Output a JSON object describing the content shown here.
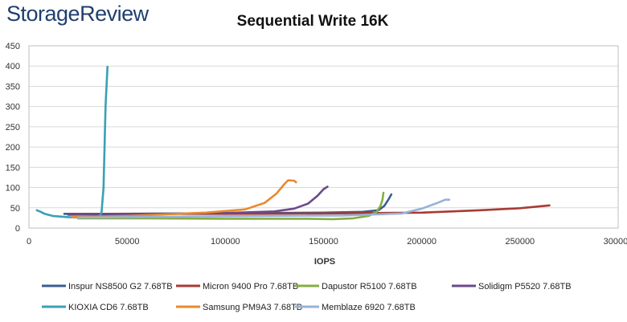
{
  "brand": {
    "part1": "Storage",
    "part2": "Review"
  },
  "chart_data": {
    "type": "line",
    "title": "Sequential Write 16K",
    "xlabel": "IOPS",
    "ylabel": "",
    "xlim": [
      0,
      300000
    ],
    "ylim": [
      0,
      450
    ],
    "xticks": [
      0,
      50000,
      100000,
      150000,
      200000,
      250000,
      300000
    ],
    "xtick_labels": [
      "0",
      "50000",
      "100000",
      "150000",
      "200000",
      "250000",
      "300000"
    ],
    "yticks": [
      0,
      50,
      100,
      150,
      200,
      250,
      300,
      350,
      400,
      450
    ],
    "ytick_labels": [
      "0",
      "50",
      "100",
      "150",
      "200",
      "250",
      "300",
      "350",
      "400",
      "450"
    ],
    "grid": true,
    "legend_position": "bottom",
    "series": [
      {
        "name": "Inspur NS8500 G2 7.68TB",
        "color": "#3a5f8f",
        "points": [
          [
            18000,
            35
          ],
          [
            40000,
            35
          ],
          [
            80000,
            36
          ],
          [
            120000,
            37
          ],
          [
            150000,
            38
          ],
          [
            170000,
            40
          ],
          [
            178000,
            44
          ],
          [
            181000,
            55
          ],
          [
            183000,
            70
          ],
          [
            184500,
            83
          ]
        ]
      },
      {
        "name": "Micron 9400 Pro 7.68TB",
        "color": "#a83a35",
        "points": [
          [
            22000,
            34
          ],
          [
            60000,
            35
          ],
          [
            100000,
            35
          ],
          [
            150000,
            36
          ],
          [
            200000,
            38
          ],
          [
            230000,
            44
          ],
          [
            250000,
            49
          ],
          [
            265000,
            56
          ]
        ]
      },
      {
        "name": "Dapustor R5100 7.68TB",
        "color": "#85ad42",
        "points": [
          [
            25000,
            24
          ],
          [
            60000,
            24
          ],
          [
            100000,
            23
          ],
          [
            140000,
            23
          ],
          [
            155000,
            22
          ],
          [
            165000,
            24
          ],
          [
            173000,
            30
          ],
          [
            177000,
            40
          ],
          [
            179000,
            55
          ],
          [
            180000,
            70
          ],
          [
            180500,
            87
          ]
        ]
      },
      {
        "name": "Solidigm P5520 7.68TB",
        "color": "#6b4a8a",
        "points": [
          [
            20000,
            33
          ],
          [
            60000,
            34
          ],
          [
            100000,
            37
          ],
          [
            125000,
            41
          ],
          [
            135000,
            48
          ],
          [
            142000,
            60
          ],
          [
            147000,
            80
          ],
          [
            150000,
            96
          ],
          [
            152000,
            102
          ]
        ]
      },
      {
        "name": "KIOXIA CD6 7.68TB",
        "color": "#3aa0b5",
        "points": [
          [
            4000,
            44
          ],
          [
            6000,
            40
          ],
          [
            8000,
            35
          ],
          [
            12000,
            30
          ],
          [
            20000,
            27
          ],
          [
            30000,
            26
          ],
          [
            36000,
            28
          ],
          [
            37000,
            40
          ],
          [
            38000,
            100
          ],
          [
            39000,
            300
          ],
          [
            40000,
            398
          ]
        ]
      },
      {
        "name": "Samsung PM9A3 7.68TB",
        "color": "#e8892e",
        "points": [
          [
            22000,
            27
          ],
          [
            50000,
            30
          ],
          [
            90000,
            38
          ],
          [
            110000,
            46
          ],
          [
            120000,
            62
          ],
          [
            126000,
            85
          ],
          [
            130000,
            108
          ],
          [
            132000,
            118
          ],
          [
            135000,
            117
          ],
          [
            136000,
            113
          ]
        ]
      },
      {
        "name": "Memblaze 6920 7.68TB",
        "color": "#97b2d6",
        "points": [
          [
            25000,
            26
          ],
          [
            70000,
            28
          ],
          [
            120000,
            30
          ],
          [
            160000,
            31
          ],
          [
            190000,
            36
          ],
          [
            200000,
            48
          ],
          [
            208000,
            62
          ],
          [
            212000,
            70
          ],
          [
            214000,
            70
          ]
        ]
      }
    ]
  }
}
